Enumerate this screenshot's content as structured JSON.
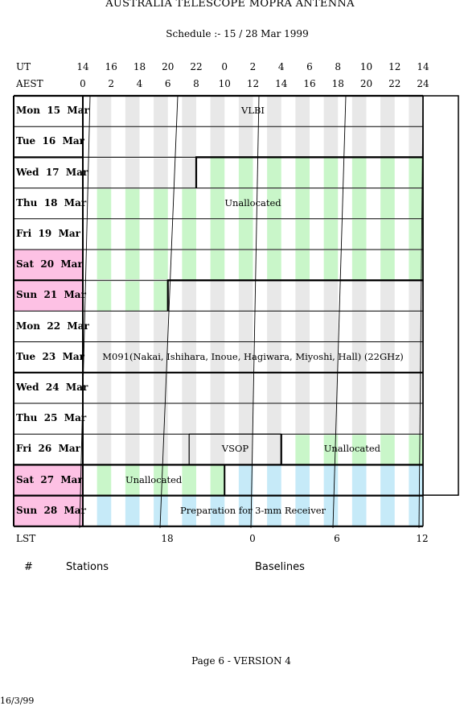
{
  "document": {
    "title": "AUSTRALIA TELESCOPE MOPRA ANTENNA",
    "schedule": "Schedule :- 15 / 28 Mar 1999",
    "footer": "Page 6 - VERSION 4",
    "date": "16/3/99"
  },
  "axes": {
    "ut_label": "UT",
    "aest_label": "AEST",
    "lst_label": "LST",
    "ut_ticks": [
      "14",
      "16",
      "18",
      "20",
      "22",
      "0",
      "2",
      "4",
      "6",
      "8",
      "10",
      "12",
      "14"
    ],
    "aest_ticks": [
      "0",
      "2",
      "4",
      "6",
      "8",
      "10",
      "12",
      "14",
      "16",
      "18",
      "20",
      "22",
      "24"
    ],
    "lst_ticks": [
      "18",
      "0",
      "6",
      "12"
    ]
  },
  "days": [
    {
      "label": "Mon  15  Mar",
      "weekend": false,
      "thick_top": true
    },
    {
      "label": "Tue  16  Mar",
      "weekend": false,
      "thick_top": false
    },
    {
      "label": "Wed  17  Mar",
      "weekend": false,
      "thick_top": true
    },
    {
      "label": "Thu  18  Mar",
      "weekend": false,
      "thick_top": false
    },
    {
      "label": "Fri  19  Mar",
      "weekend": false,
      "thick_top": false
    },
    {
      "label": "Sat  20  Mar",
      "weekend": true,
      "thick_top": false
    },
    {
      "label": "Sun  21  Mar",
      "weekend": true,
      "thick_top": true
    },
    {
      "label": "Mon  22  Mar",
      "weekend": false,
      "thick_top": false
    },
    {
      "label": "Tue  23  Mar",
      "weekend": false,
      "thick_top": false
    },
    {
      "label": "Wed  24  Mar",
      "weekend": false,
      "thick_top": true
    },
    {
      "label": "Thu  25  Mar",
      "weekend": false,
      "thick_top": false
    },
    {
      "label": "Fri  26  Mar",
      "weekend": false,
      "thick_top": false
    },
    {
      "label": "Sat  27  Mar",
      "weekend": true,
      "thick_top": true
    },
    {
      "label": "Sun  28  Mar",
      "weekend": true,
      "thick_top": true
    }
  ],
  "blocks": [
    {
      "label": "VLBI",
      "row": 0
    },
    {
      "label": "Unallocated",
      "row": 3
    },
    {
      "label": "M091(Nakai, Ishihara, Inoue, Hagiwara, Miyoshi, Hall) (22GHz)",
      "row": 8
    },
    {
      "label": "VSOP",
      "row": 11
    },
    {
      "label": "Unallocated",
      "row": 11
    },
    {
      "label": "Unallocated",
      "row": 12
    },
    {
      "label": "Preparation for 3-mm Receiver",
      "row": 13
    }
  ],
  "table_header": {
    "hash": "#",
    "stations": "Stations",
    "baselines": "Baselines"
  },
  "colors": {
    "weekend": "#fdc1e4",
    "grey_stripe": "#e8e8e8",
    "green_stripe": "#c9f6c9",
    "blue_stripe": "#c6eaf8"
  }
}
